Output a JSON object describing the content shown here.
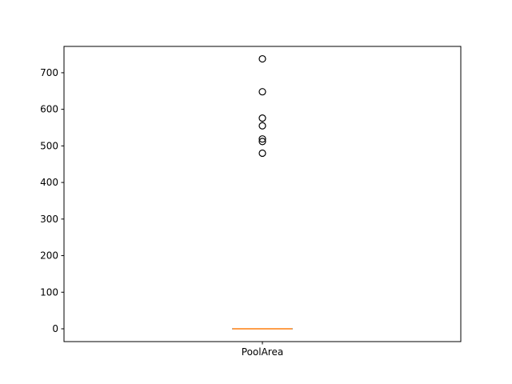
{
  "chart_data": {
    "type": "box",
    "title": "",
    "xlabel": "",
    "ylabel": "",
    "categories": [
      "PoolArea"
    ],
    "ylim": [
      -35,
      772
    ],
    "yticks": [
      0,
      100,
      200,
      300,
      400,
      500,
      600,
      700
    ],
    "ytick_labels": [
      "0",
      "100",
      "200",
      "300",
      "400",
      "500",
      "600",
      "700"
    ],
    "grid": false,
    "boxes": [
      {
        "category": "PoolArea",
        "whisker_low": 0,
        "q1": 0,
        "median": 0,
        "q3": 0,
        "whisker_high": 0,
        "outliers": [
          738,
          648,
          576,
          555,
          519,
          512,
          480
        ]
      }
    ],
    "colors": {
      "box": "#000000",
      "median": "#ff7f0e",
      "outlier_edge": "#000000"
    }
  }
}
